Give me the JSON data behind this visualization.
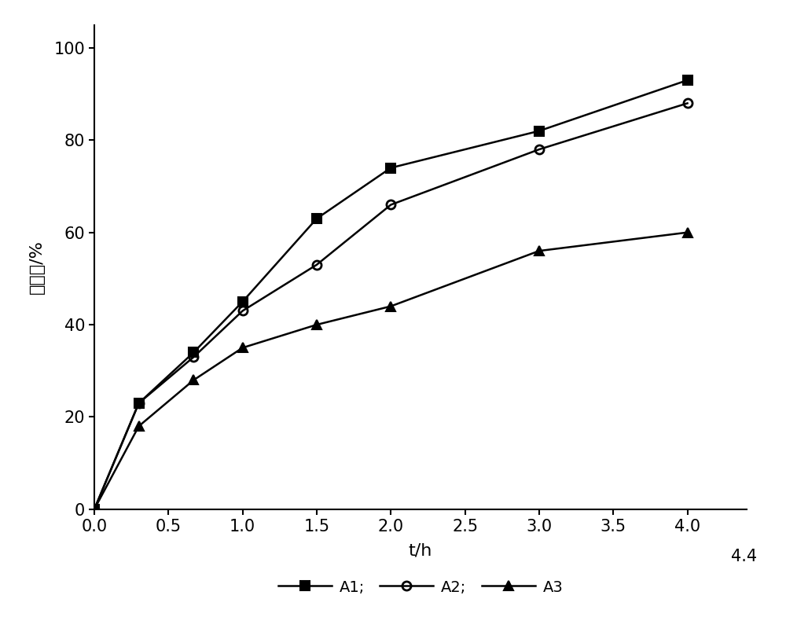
{
  "series": [
    {
      "label": "A1;",
      "x": [
        0.0,
        0.3,
        0.67,
        1.0,
        1.5,
        2.0,
        3.0,
        4.0
      ],
      "y": [
        0,
        23,
        34,
        45,
        63,
        74,
        82,
        93
      ],
      "marker": "s",
      "markersize": 8,
      "linewidth": 1.8,
      "color": "#000000",
      "fillstyle": "full"
    },
    {
      "label": "A2;",
      "x": [
        0.0,
        0.3,
        0.67,
        1.0,
        1.5,
        2.0,
        3.0,
        4.0
      ],
      "y": [
        0,
        23,
        33,
        43,
        53,
        66,
        78,
        88
      ],
      "marker": "o",
      "markersize": 8,
      "linewidth": 1.8,
      "color": "#000000",
      "fillstyle": "none"
    },
    {
      "label": "A3",
      "x": [
        0.0,
        0.3,
        0.67,
        1.0,
        1.5,
        2.0,
        3.0,
        4.0
      ],
      "y": [
        0,
        18,
        28,
        35,
        40,
        44,
        56,
        60
      ],
      "marker": "^",
      "markersize": 8,
      "linewidth": 1.8,
      "color": "#000000",
      "fillstyle": "full"
    }
  ],
  "xlabel": "t/h",
  "ylabel": "去除率/%",
  "xlim": [
    0.0,
    4.4
  ],
  "ylim": [
    0,
    105
  ],
  "xticks": [
    0.0,
    0.5,
    1.0,
    1.5,
    2.0,
    2.5,
    3.0,
    3.5,
    4.0
  ],
  "xtick_labels": [
    "0.0",
    "0.5",
    "1.0",
    "1.5",
    "2.0",
    "2.5",
    "3.0",
    "3.5",
    "4.0"
  ],
  "yticks": [
    0,
    20,
    40,
    60,
    80,
    100
  ],
  "ytick_labels": [
    "0",
    "20",
    "40",
    "60",
    "80",
    "100"
  ],
  "axis_fontsize": 16,
  "tick_fontsize": 15,
  "legend_fontsize": 14,
  "background_color": "#ffffff",
  "figwidth": 10.0,
  "figheight": 7.9
}
